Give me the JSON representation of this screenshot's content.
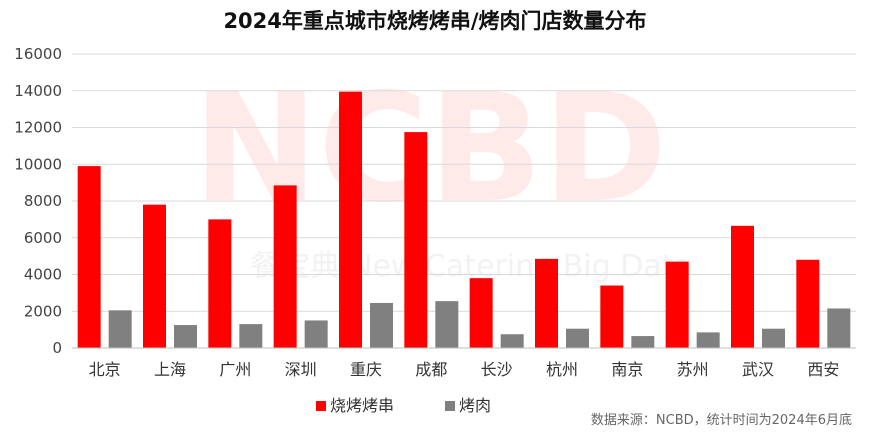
{
  "watermark": {
    "brand": "NCBD",
    "cn": "餐宝典",
    "en": "New Catering Big Data"
  },
  "source_note": "数据来源：NCBD，统计时间为2024年6月底",
  "colors": {
    "series1": "#ff0000",
    "series2": "#808080",
    "grid": "#d9d9d9",
    "axis": "#bfbfbf"
  },
  "chart_data": {
    "type": "bar",
    "title": "2024年重点城市烧烤烤串/烤肉门店数量分布",
    "categories": [
      "北京",
      "上海",
      "广州",
      "深圳",
      "重庆",
      "成都",
      "长沙",
      "杭州",
      "南京",
      "苏州",
      "武汉",
      "西安"
    ],
    "series": [
      {
        "name": "烧烤烤串",
        "values": [
          9900,
          7800,
          7000,
          8850,
          13950,
          11750,
          3800,
          4850,
          3400,
          4700,
          6650,
          4800
        ]
      },
      {
        "name": "烤肉",
        "values": [
          2050,
          1250,
          1300,
          1500,
          2450,
          2550,
          750,
          1050,
          650,
          850,
          1050,
          2150
        ]
      }
    ],
    "yticks": [
      0,
      2000,
      4000,
      6000,
      8000,
      10000,
      12000,
      14000,
      16000
    ],
    "ylim": [
      0,
      16000
    ],
    "grid": true,
    "legend_position": "bottom"
  }
}
